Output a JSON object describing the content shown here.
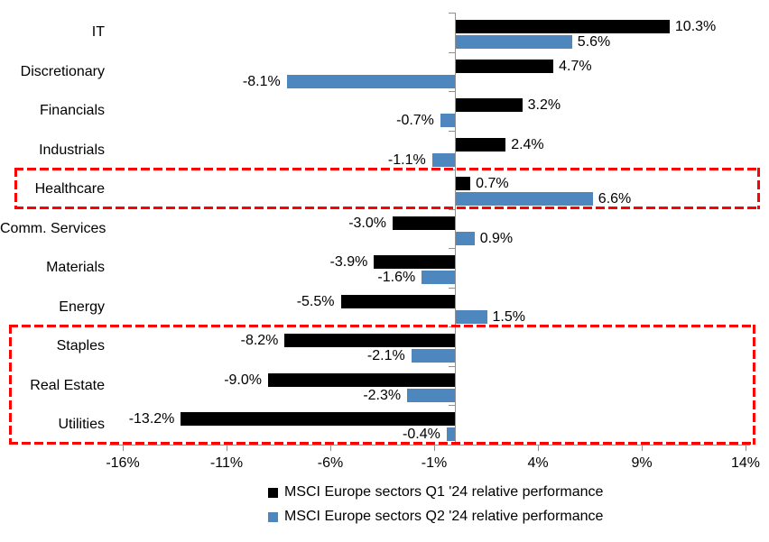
{
  "chart_data": {
    "type": "bar",
    "orientation": "horizontal",
    "title": "",
    "categories": [
      "IT",
      "Discretionary",
      "Financials",
      "Industrials",
      "Healthcare",
      "Comm. Services",
      "Materials",
      "Energy",
      "Staples",
      "Real Estate",
      "Utilities"
    ],
    "series": [
      {
        "name": "MSCI Europe sectors Q1 '24 relative performance",
        "color": "#000000",
        "values": [
          10.3,
          4.7,
          3.2,
          2.4,
          0.7,
          -3.0,
          -3.9,
          -5.5,
          -8.2,
          -9.0,
          -13.2
        ]
      },
      {
        "name": "MSCI Europe sectors Q2 '24 relative performance",
        "color": "#4E86BE",
        "values": [
          5.6,
          -8.1,
          -0.7,
          -1.1,
          6.6,
          0.9,
          -1.6,
          1.5,
          -2.1,
          -2.3,
          -0.4
        ]
      }
    ],
    "value_label_format": "one-decimal-percent",
    "x_axis": {
      "ticks": [
        {
          "label": "-16%",
          "value": -16
        },
        {
          "label": "-11%",
          "value": -11
        },
        {
          "label": "-6%",
          "value": -6
        },
        {
          "label": "-1%",
          "value": -1
        },
        {
          "label": "4%",
          "value": 4
        },
        {
          "label": "9%",
          "value": 9
        },
        {
          "label": "14%",
          "value": 14
        }
      ],
      "xlim": [
        -16.7,
        14.3
      ],
      "axis_color": "#909090"
    },
    "grid": false,
    "legend_position": "bottom",
    "highlight_boxes": [
      {
        "name": "healthcare-highlight",
        "row_start": 4,
        "row_end": 4,
        "color": "#FF0000",
        "style": "dashed"
      },
      {
        "name": "defensives-highlight",
        "row_start": 8,
        "row_end": 10,
        "color": "#FF0000",
        "style": "dashed"
      }
    ]
  }
}
